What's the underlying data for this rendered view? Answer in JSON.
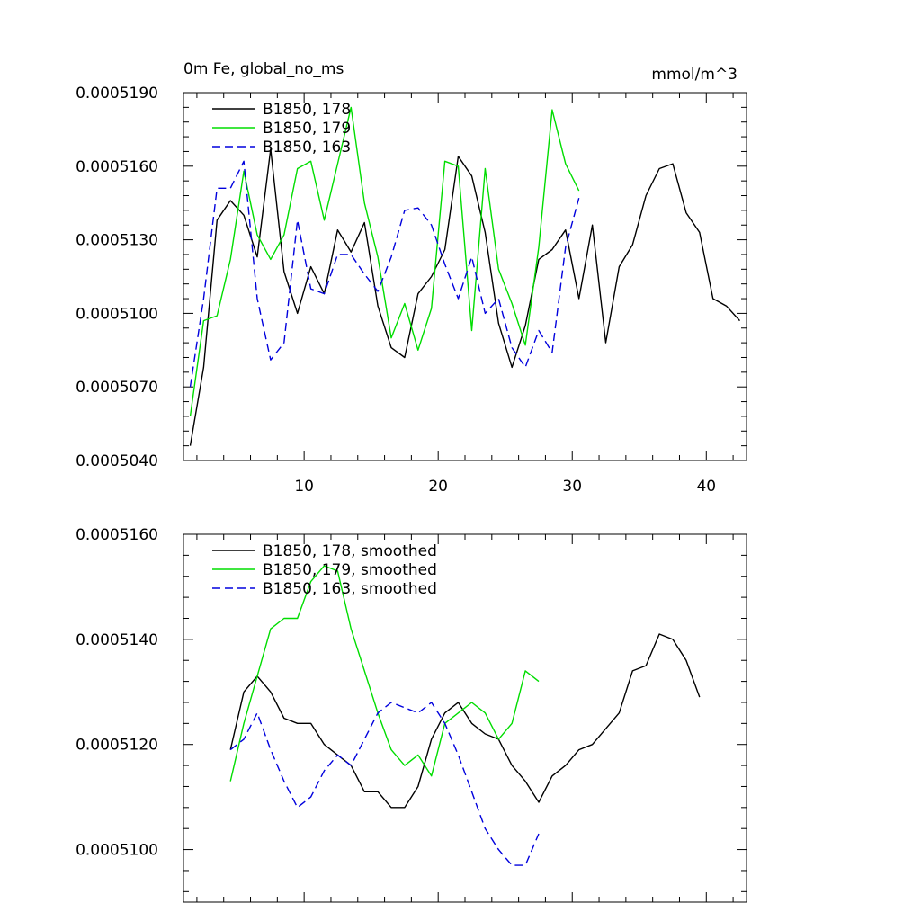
{
  "chart_data": [
    {
      "type": "line",
      "title": "0m Fe, global_no_ms",
      "units": "mmol/m^3",
      "xlabel": "",
      "ylabel": "",
      "xlim": [
        1,
        43
      ],
      "ylim": [
        0.000504,
        0.000519
      ],
      "grid": false,
      "legend": "top-left",
      "x_ticks": [
        10,
        20,
        30,
        40
      ],
      "x_tick_labels": [
        "10",
        "20",
        "30",
        "40"
      ],
      "y_ticks": [
        0.000504,
        0.000507,
        0.00051,
        0.000513,
        0.000516,
        0.000519
      ],
      "y_tick_labels": [
        "0.0005040",
        "0.0005070",
        "0.0005100",
        "0.0005130",
        "0.0005160",
        "0.0005190"
      ],
      "series": [
        {
          "name": "B1850, 178",
          "color": "#000000",
          "dash": "solid",
          "x": [
            1.5,
            2.5,
            3.5,
            4.5,
            5.5,
            6.5,
            7.5,
            8.5,
            9.5,
            10.5,
            11.5,
            12.5,
            13.5,
            14.5,
            15.5,
            16.5,
            17.5,
            18.5,
            19.5,
            20.5,
            21.5,
            22.5,
            23.5,
            24.5,
            25.5,
            26.5,
            27.5,
            28.5,
            29.5,
            30.5,
            31.5,
            32.5,
            33.5,
            34.5,
            35.5,
            36.5,
            37.5,
            38.5,
            39.5,
            40.5,
            41.5,
            42.5
          ],
          "y": [
            0.0005046,
            0.0005078,
            0.0005138,
            0.0005146,
            0.000514,
            0.0005123,
            0.0005167,
            0.0005117,
            0.00051,
            0.0005119,
            0.0005108,
            0.0005134,
            0.0005125,
            0.0005137,
            0.0005103,
            0.0005086,
            0.0005082,
            0.0005108,
            0.0005115,
            0.0005126,
            0.0005164,
            0.0005156,
            0.0005133,
            0.0005096,
            0.0005078,
            0.0005095,
            0.0005122,
            0.0005126,
            0.0005134,
            0.0005106,
            0.0005136,
            0.0005088,
            0.0005119,
            0.0005128,
            0.0005148,
            0.0005159,
            0.0005161,
            0.0005141,
            0.0005133,
            0.0005106,
            0.0005103,
            0.0005097
          ]
        },
        {
          "name": "B1850, 179",
          "color": "#00dd00",
          "dash": "solid",
          "x": [
            1.5,
            2.5,
            3.5,
            4.5,
            5.5,
            6.5,
            7.5,
            8.5,
            9.5,
            10.5,
            11.5,
            12.5,
            13.5,
            14.5,
            15.5,
            16.5,
            17.5,
            18.5,
            19.5,
            20.5,
            21.5,
            22.5,
            23.5,
            24.5,
            25.5,
            26.5,
            27.5,
            28.5,
            29.5,
            30.5
          ],
          "y": [
            0.0005058,
            0.0005097,
            0.0005099,
            0.0005122,
            0.0005158,
            0.0005132,
            0.0005122,
            0.0005132,
            0.0005159,
            0.0005162,
            0.0005138,
            0.0005161,
            0.0005184,
            0.0005145,
            0.0005123,
            0.000509,
            0.0005104,
            0.0005085,
            0.0005102,
            0.0005162,
            0.000516,
            0.0005093,
            0.0005159,
            0.0005118,
            0.0005104,
            0.0005087,
            0.0005127,
            0.0005183,
            0.0005161,
            0.000515
          ]
        },
        {
          "name": "B1850, 163",
          "color": "#0000dd",
          "dash": "dashed",
          "x": [
            1.5,
            2.5,
            3.5,
            4.5,
            5.5,
            6.5,
            7.5,
            8.5,
            9.5,
            10.5,
            11.5,
            12.5,
            13.5,
            14.5,
            15.5,
            16.5,
            17.5,
            18.5,
            19.5,
            20.5,
            21.5,
            22.5,
            23.5,
            24.5,
            25.5,
            26.5,
            27.5,
            28.5,
            29.5,
            30.5
          ],
          "y": [
            0.000507,
            0.0005106,
            0.0005151,
            0.0005151,
            0.0005162,
            0.0005106,
            0.0005081,
            0.0005088,
            0.0005138,
            0.000511,
            0.0005108,
            0.0005124,
            0.0005124,
            0.0005116,
            0.0005109,
            0.0005123,
            0.0005142,
            0.0005143,
            0.0005136,
            0.000512,
            0.0005106,
            0.0005123,
            0.00051,
            0.0005106,
            0.0005086,
            0.0005078,
            0.0005093,
            0.0005084,
            0.0005127,
            0.0005147
          ]
        }
      ]
    },
    {
      "type": "line",
      "title": "",
      "xlabel": "",
      "ylabel": "",
      "xlim": [
        1,
        43
      ],
      "ylim": [
        0.000509,
        0.000516
      ],
      "grid": false,
      "legend": "top-left",
      "x_ticks": [
        10,
        20,
        30,
        40
      ],
      "x_tick_labels": [],
      "y_ticks": [
        0.00051,
        0.000512,
        0.000514,
        0.000516
      ],
      "y_tick_labels": [
        "0.0005100",
        "0.0005120",
        "0.0005140",
        "0.0005160"
      ],
      "series": [
        {
          "name": "B1850, 178, smoothed",
          "color": "#000000",
          "dash": "solid",
          "x": [
            4.5,
            5.5,
            6.5,
            7.5,
            8.5,
            9.5,
            10.5,
            11.5,
            12.5,
            13.5,
            14.5,
            15.5,
            16.5,
            17.5,
            18.5,
            19.5,
            20.5,
            21.5,
            22.5,
            23.5,
            24.5,
            25.5,
            26.5,
            27.5,
            28.5,
            29.5,
            30.5,
            31.5,
            32.5,
            33.5,
            34.5,
            35.5,
            36.5,
            37.5,
            38.5,
            39.5
          ],
          "y": [
            0.0005119,
            0.000513,
            0.0005133,
            0.000513,
            0.0005125,
            0.0005124,
            0.0005124,
            0.000512,
            0.0005118,
            0.0005116,
            0.0005111,
            0.0005111,
            0.0005108,
            0.0005108,
            0.0005112,
            0.0005121,
            0.0005126,
            0.0005128,
            0.0005124,
            0.0005122,
            0.0005121,
            0.0005116,
            0.0005113,
            0.0005109,
            0.0005114,
            0.0005116,
            0.0005119,
            0.000512,
            0.0005123,
            0.0005126,
            0.0005134,
            0.0005135,
            0.0005141,
            0.000514,
            0.0005136,
            0.0005129
          ]
        },
        {
          "name": "B1850, 179, smoothed",
          "color": "#00dd00",
          "dash": "solid",
          "x": [
            4.5,
            5.5,
            6.5,
            7.5,
            8.5,
            9.5,
            10.5,
            11.5,
            12.5,
            13.5,
            14.5,
            15.5,
            16.5,
            17.5,
            18.5,
            19.5,
            20.5,
            21.5,
            22.5,
            23.5,
            24.5,
            25.5,
            26.5,
            27.5
          ],
          "y": [
            0.0005113,
            0.0005124,
            0.0005133,
            0.0005142,
            0.0005144,
            0.0005144,
            0.0005151,
            0.0005154,
            0.0005153,
            0.0005142,
            0.0005134,
            0.0005126,
            0.0005119,
            0.0005116,
            0.0005118,
            0.0005114,
            0.0005124,
            0.0005126,
            0.0005128,
            0.0005126,
            0.0005121,
            0.0005124,
            0.0005134,
            0.0005132
          ]
        },
        {
          "name": "B1850, 163, smoothed",
          "color": "#0000dd",
          "dash": "dashed",
          "x": [
            4.5,
            5.5,
            6.5,
            7.5,
            8.5,
            9.5,
            10.5,
            11.5,
            12.5,
            13.5,
            14.5,
            15.5,
            16.5,
            17.5,
            18.5,
            19.5,
            20.5,
            21.5,
            22.5,
            23.5,
            24.5,
            25.5,
            26.5,
            27.5
          ],
          "y": [
            0.0005119,
            0.0005121,
            0.0005126,
            0.0005119,
            0.0005113,
            0.0005108,
            0.000511,
            0.0005115,
            0.0005118,
            0.0005116,
            0.0005121,
            0.0005126,
            0.0005128,
            0.0005127,
            0.0005126,
            0.0005128,
            0.0005124,
            0.0005118,
            0.0005111,
            0.0005104,
            0.00051,
            0.0005097,
            0.0005097,
            0.0005103
          ]
        }
      ]
    }
  ]
}
